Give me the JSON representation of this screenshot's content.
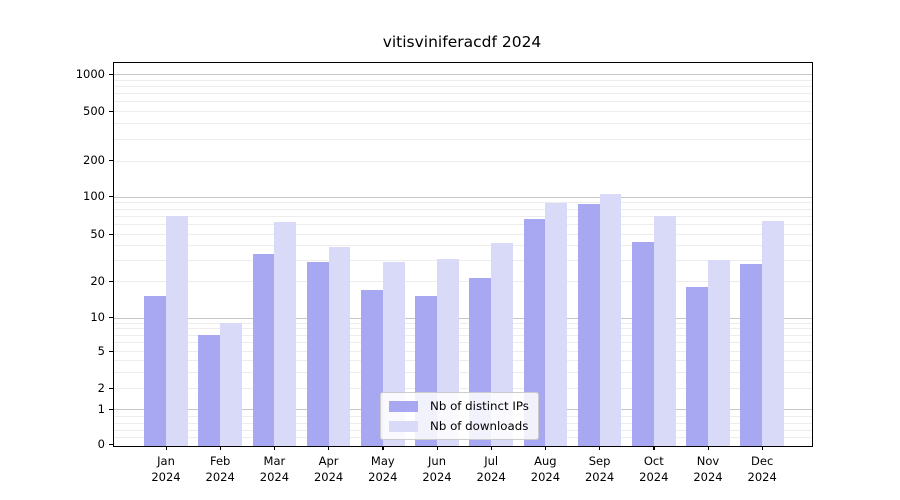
{
  "chart_data": {
    "type": "bar",
    "title": "vitisviniferacdf 2024",
    "categories": [
      "Jan",
      "Feb",
      "Mar",
      "Apr",
      "May",
      "Jun",
      "Jul",
      "Aug",
      "Sep",
      "Oct",
      "Nov",
      "Dec"
    ],
    "year_label": "2024",
    "series": [
      {
        "name": "Nb of distinct IPs",
        "color": "#a8a8f2",
        "values": [
          15,
          7,
          34,
          29,
          17,
          15,
          21,
          66,
          87,
          43,
          18,
          28
        ]
      },
      {
        "name": "Nb of downloads",
        "color": "#d9d9f8",
        "values": [
          70,
          9,
          62,
          39,
          29,
          31,
          42,
          89,
          105,
          70,
          30,
          63
        ]
      }
    ],
    "yticks": [
      0,
      1,
      2,
      5,
      10,
      20,
      50,
      100,
      200,
      500,
      1000
    ],
    "ylim": [
      0,
      1200
    ],
    "yscale": "log-like",
    "xlabel": "",
    "ylabel": "",
    "grid": true,
    "legend_position": "inside-lower-center"
  },
  "colors": {
    "major_grid": "#c6c6c6",
    "minor_grid": "#ededed",
    "axis": "#000000",
    "background": "#ffffff"
  }
}
